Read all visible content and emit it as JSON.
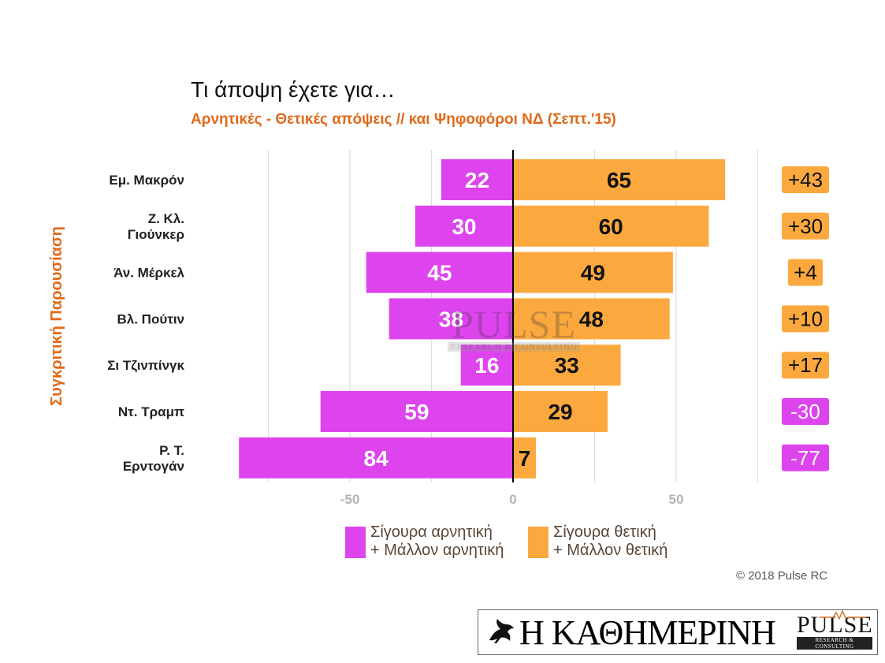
{
  "chart_data": {
    "type": "bar",
    "title": "Τι άποψη έχετε για…",
    "subtitle": "Αρνητικές - Θετικές απόψεις // και Ψηφοφόροι ΝΔ (Σεπτ.'15)",
    "ylabel": "Συγκριτική  Παρουσίαση",
    "xlim": [
      -85,
      75
    ],
    "xticks": [
      -50,
      0,
      50
    ],
    "grid": true,
    "legend_position": "bottom",
    "categories": [
      [
        "Εμ. Μακρόν"
      ],
      [
        "Ζ. Κλ.",
        "Γιούνκερ"
      ],
      [
        "Άν. Μέρκελ"
      ],
      [
        "Βλ. Πούτιν"
      ],
      [
        "Σι Τζινπίνγκ"
      ],
      [
        "Ντ. Τραμπ"
      ],
      [
        "Ρ. Τ.",
        "Ερντογάν"
      ]
    ],
    "series": [
      {
        "name": "Σίγουρα αρνητική + Μάλλον αρνητική",
        "color": "#dd44ee",
        "values": [
          22,
          30,
          45,
          38,
          16,
          59,
          84
        ]
      },
      {
        "name": "Σίγουρα θετική + Μάλλον θετική",
        "color": "#fba93f",
        "values": [
          65,
          60,
          49,
          48,
          33,
          29,
          7
        ]
      }
    ],
    "net": {
      "labels": [
        "+43",
        "+30",
        "+4",
        "+10",
        "+17",
        "-30",
        "-77"
      ],
      "colors": [
        "#fba93f",
        "#fba93f",
        "#fba93f",
        "#fba93f",
        "#fba93f",
        "#dd44ee",
        "#dd44ee"
      ]
    }
  },
  "legend": {
    "neg": [
      "Σίγουρα αρνητική",
      "+ Μάλλον αρνητική"
    ],
    "pos": [
      "Σίγουρα θετική",
      "+ Μάλλον θετική"
    ]
  },
  "watermark": {
    "main": "PULSE",
    "sub": "RESEARCH & CONSULTING"
  },
  "copyright": "© 2018 Pulse RC",
  "logo": {
    "newspaper": "Η ΚΑΘΗΜΕΡΙΝΗ",
    "pulse_main": "PULSE",
    "pulse_sub": "RESEARCH & CONSULTING"
  }
}
